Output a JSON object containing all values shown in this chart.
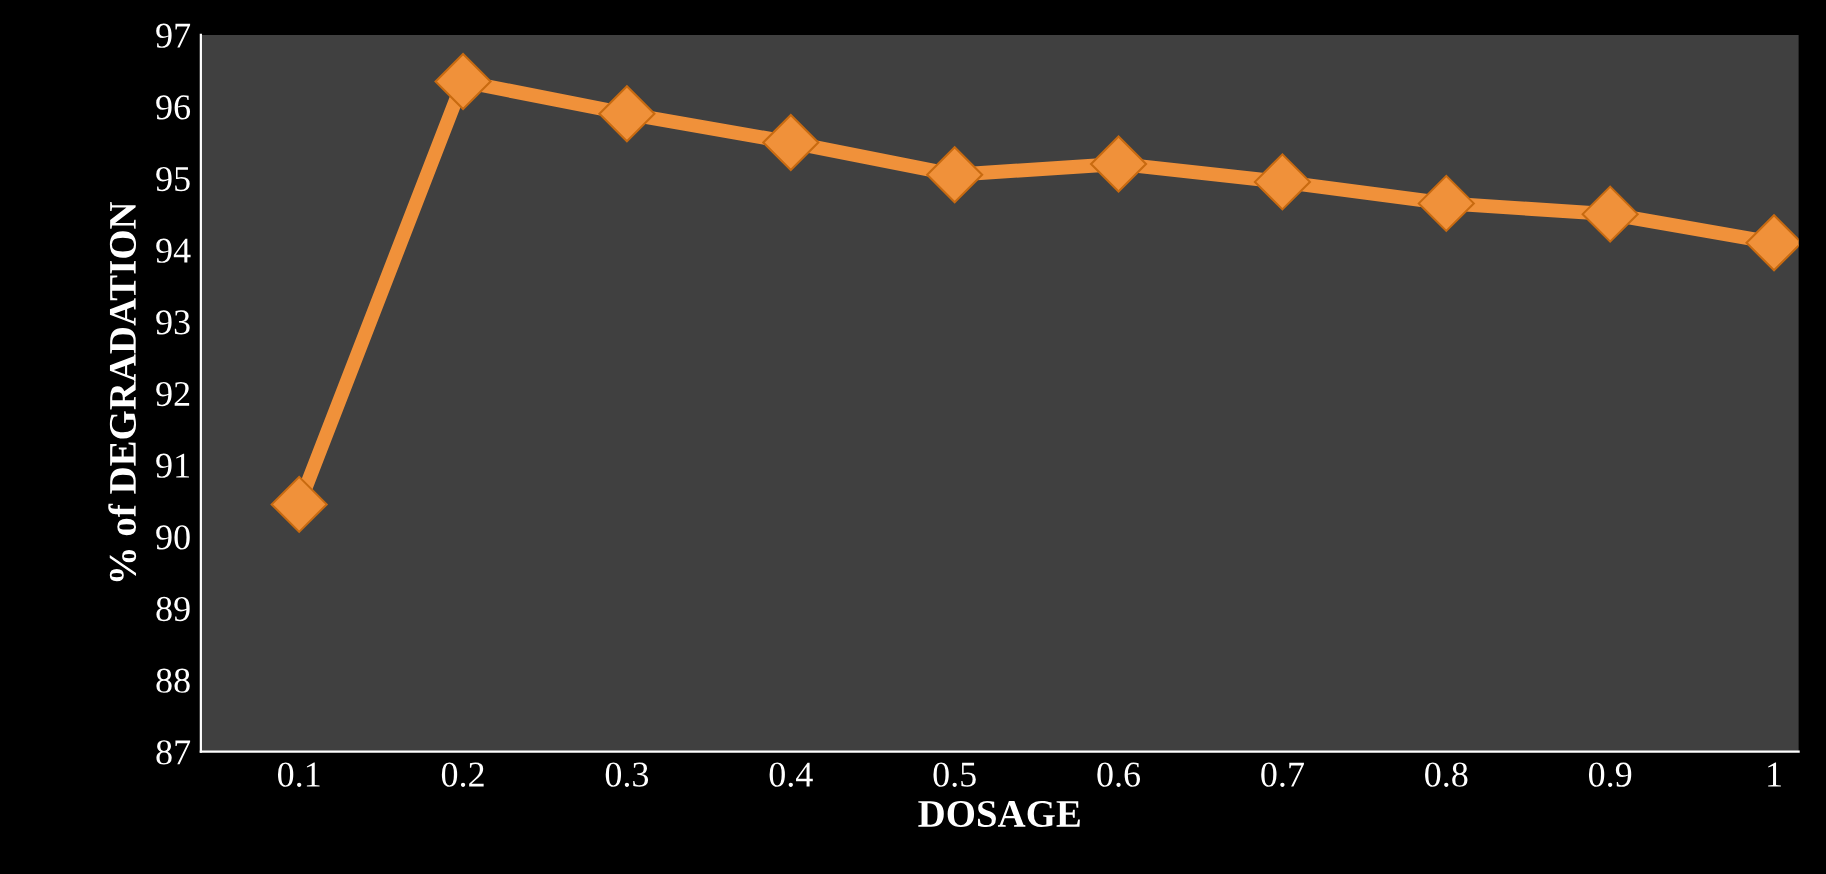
{
  "chart_data": {
    "type": "line",
    "xlabel": "DOSAGE",
    "ylabel": "% of DEGRADATION",
    "categories": [
      "0.1",
      "0.2",
      "0.3",
      "0.4",
      "0.5",
      "0.6",
      "0.7",
      "0.8",
      "0.9",
      "1"
    ],
    "series": [
      {
        "color": "#f0913a",
        "values": [
          90.45,
          96.35,
          95.9,
          95.5,
          95.05,
          95.2,
          94.95,
          94.65,
          94.5,
          94.1
        ]
      }
    ],
    "ylim": [
      87,
      97
    ],
    "yticks": [
      87,
      88,
      89,
      90,
      91,
      92,
      93,
      94,
      95,
      96,
      97
    ],
    "grid": false,
    "legend": false,
    "marker": "diamond",
    "line_style": "solid"
  }
}
